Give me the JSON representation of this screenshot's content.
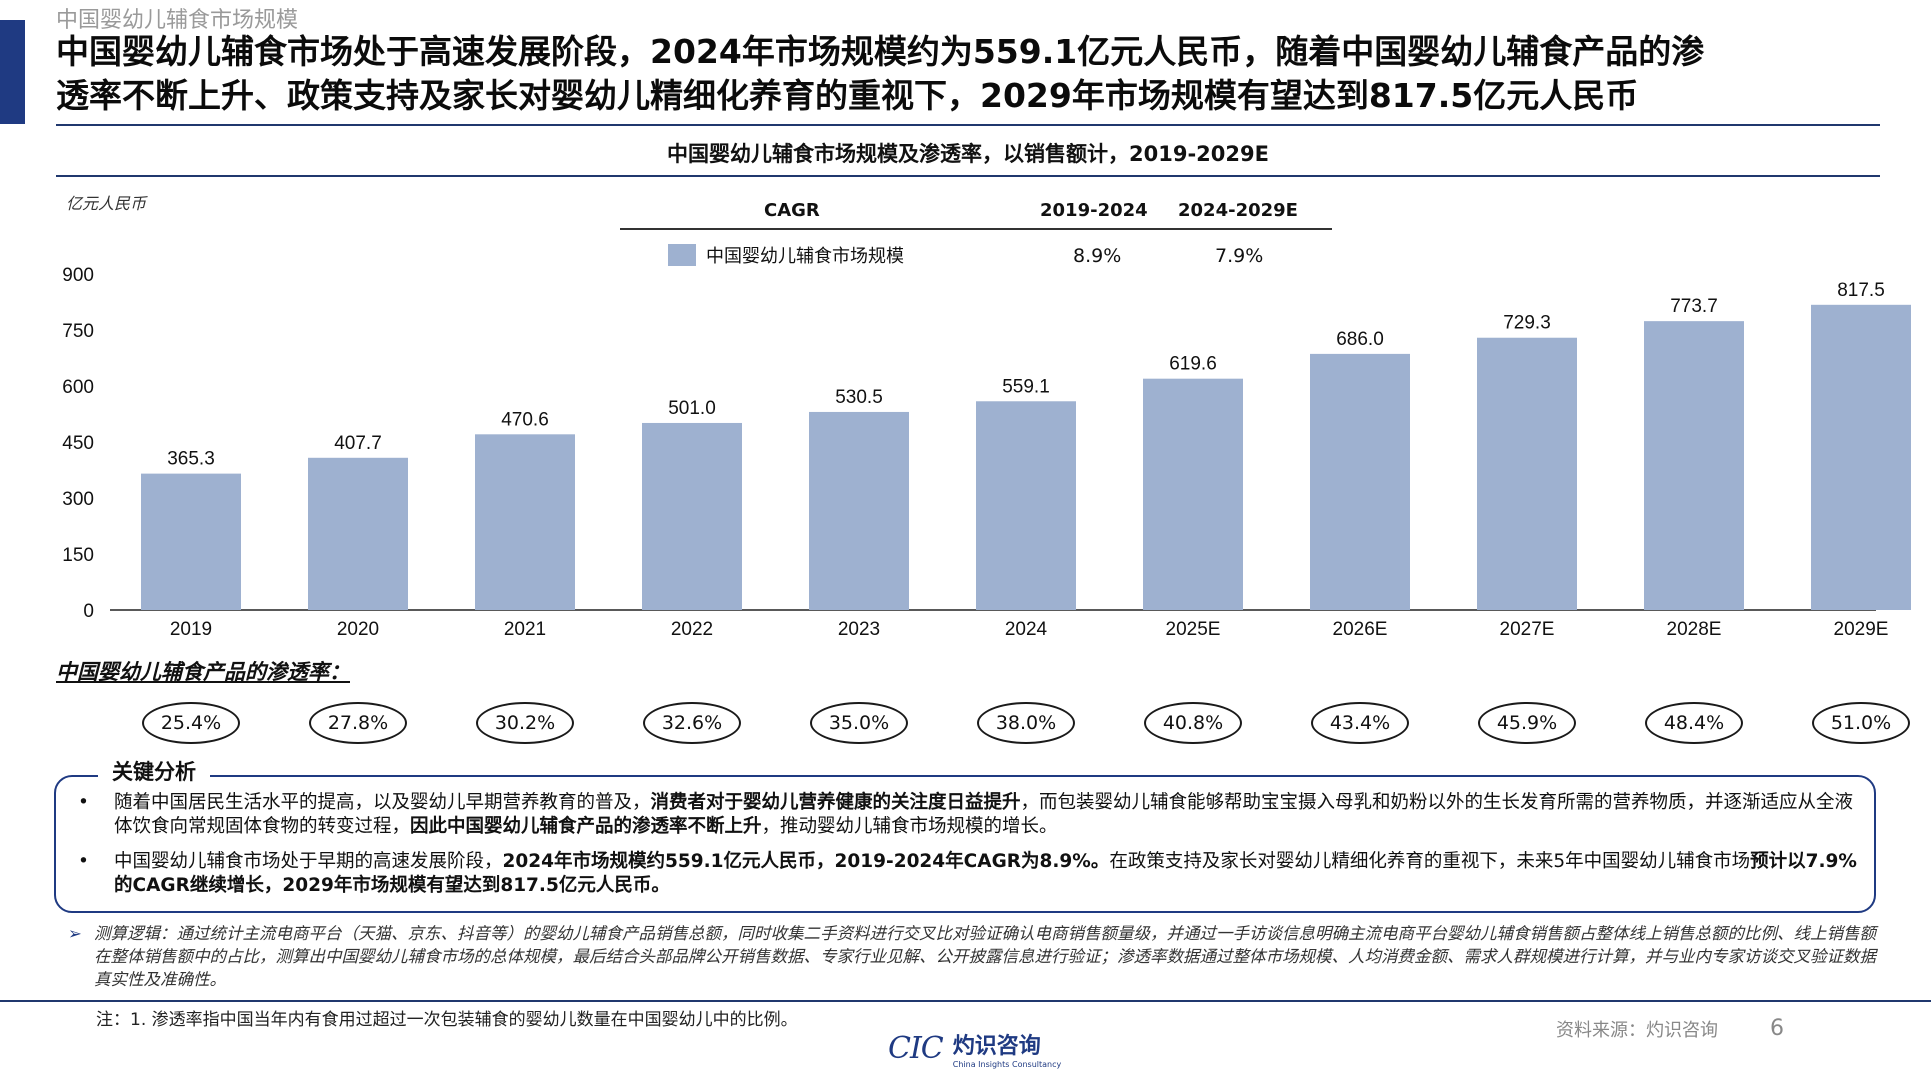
{
  "section_label": "中国婴幼儿辅食市场规模",
  "headline_line1": "中国婴幼儿辅食市场处于高速发展阶段，2024年市场规模约为559.1亿元人民币，随着中国婴幼儿辅食产品的渗",
  "headline_line2": "透率不断上升、政策支持及家长对婴幼儿精细化养育的重视下，2029年市场规模有望达到817.5亿元人民币",
  "cagr": {
    "header": "CAGR",
    "period1": "2019-2024",
    "period2": "2024-2029E",
    "series_label": "中国婴幼儿辅食市场规模",
    "value1": "8.9%",
    "value2": "7.9%"
  },
  "chart_data": {
    "type": "bar",
    "title": "中国婴幼儿辅食市场规模及渗透率，以销售额计，2019-2029E",
    "unit_label": "亿元人民币",
    "categories": [
      "2019",
      "2020",
      "2021",
      "2022",
      "2023",
      "2024",
      "2025E",
      "2026E",
      "2027E",
      "2028E",
      "2029E"
    ],
    "series": [
      {
        "name": "中国婴幼儿辅食市场规模",
        "values": [
          365.3,
          407.7,
          470.6,
          501.0,
          530.5,
          559.1,
          619.6,
          686.0,
          729.3,
          773.7,
          817.5
        ],
        "labels": [
          "365.3",
          "407.7",
          "470.6",
          "501.0",
          "530.5",
          "559.1",
          "619.6",
          "686.0",
          "729.3",
          "773.7",
          "817.5"
        ]
      }
    ],
    "ylim": [
      0,
      900
    ],
    "yticks": [
      0,
      150,
      300,
      450,
      600,
      750,
      900
    ],
    "grid": false,
    "bar_color": "#9eb1d0"
  },
  "penetration": {
    "title": "中国婴幼儿辅食产品的渗透率：",
    "values": [
      "25.4%",
      "27.8%",
      "30.2%",
      "32.6%",
      "35.0%",
      "38.0%",
      "40.8%",
      "43.4%",
      "45.9%",
      "48.4%",
      "51.0%"
    ]
  },
  "analysis": {
    "title": "关键分析",
    "bullet1": {
      "p1": "随着中国居民生活水平的提高，以及婴幼儿早期营养教育的普及，",
      "b1": "消费者对于婴幼儿营养健康的关注度日益提升",
      "p2": "，而包装婴幼儿辅食能够帮助宝宝摄入母乳和奶粉以外的生长发育所需的营养物质，并逐渐适应从全液体饮食向常规固体食物的转变过程，",
      "b2": "因此中国婴幼儿辅食产品的渗透率不断上升",
      "p3": "，推动婴幼儿辅食市场规模的增长。"
    },
    "bullet2": {
      "p1": "中国婴幼儿辅食市场处于早期的高速发展阶段，",
      "b1": "2024年市场规模约559.1亿元人民币，2019-2024年CAGR为8.9%。",
      "p2": "在政策支持及家长对婴幼儿精细化养育的重视下，未来5年中国婴幼儿辅食市场",
      "b2": "预计以7.9%的CAGR继续增长，2029年市场规模有望达到817.5亿元人民币。",
      "p3": ""
    }
  },
  "methodology": "测算逻辑：通过统计主流电商平台（天猫、京东、抖音等）的婴幼儿辅食产品销售总额，同时收集二手资料进行交叉比对验证确认电商销售额量级，并通过一手访谈信息明确主流电商平台婴幼儿辅食销售额占整体线上销售总额的比例、线上销售额在整体销售额中的占比，测算出中国婴幼儿辅食市场的总体规模，最后结合头部品牌公开销售数据、专家行业见解、公开披露信息进行验证；渗透率数据通过整体市场规模、人均消费金额、需求人群规模进行计算，并与业内专家访谈交叉验证数据真实性及准确性。",
  "footnote": "注：1. 渗透率指中国当年内有食用过超过一次包装辅食的婴幼儿数量在中国婴幼儿中的比例。",
  "logo": {
    "mark": "CIC",
    "cn": "灼识咨询",
    "en": "China Insights Consultancy"
  },
  "source": "资料来源：灼识咨询",
  "page_number": "6",
  "colors": {
    "accent": "#1f3a82",
    "bar": "#9eb1d0"
  },
  "icons": {
    "method_bullet": "arrow-right-icon"
  }
}
